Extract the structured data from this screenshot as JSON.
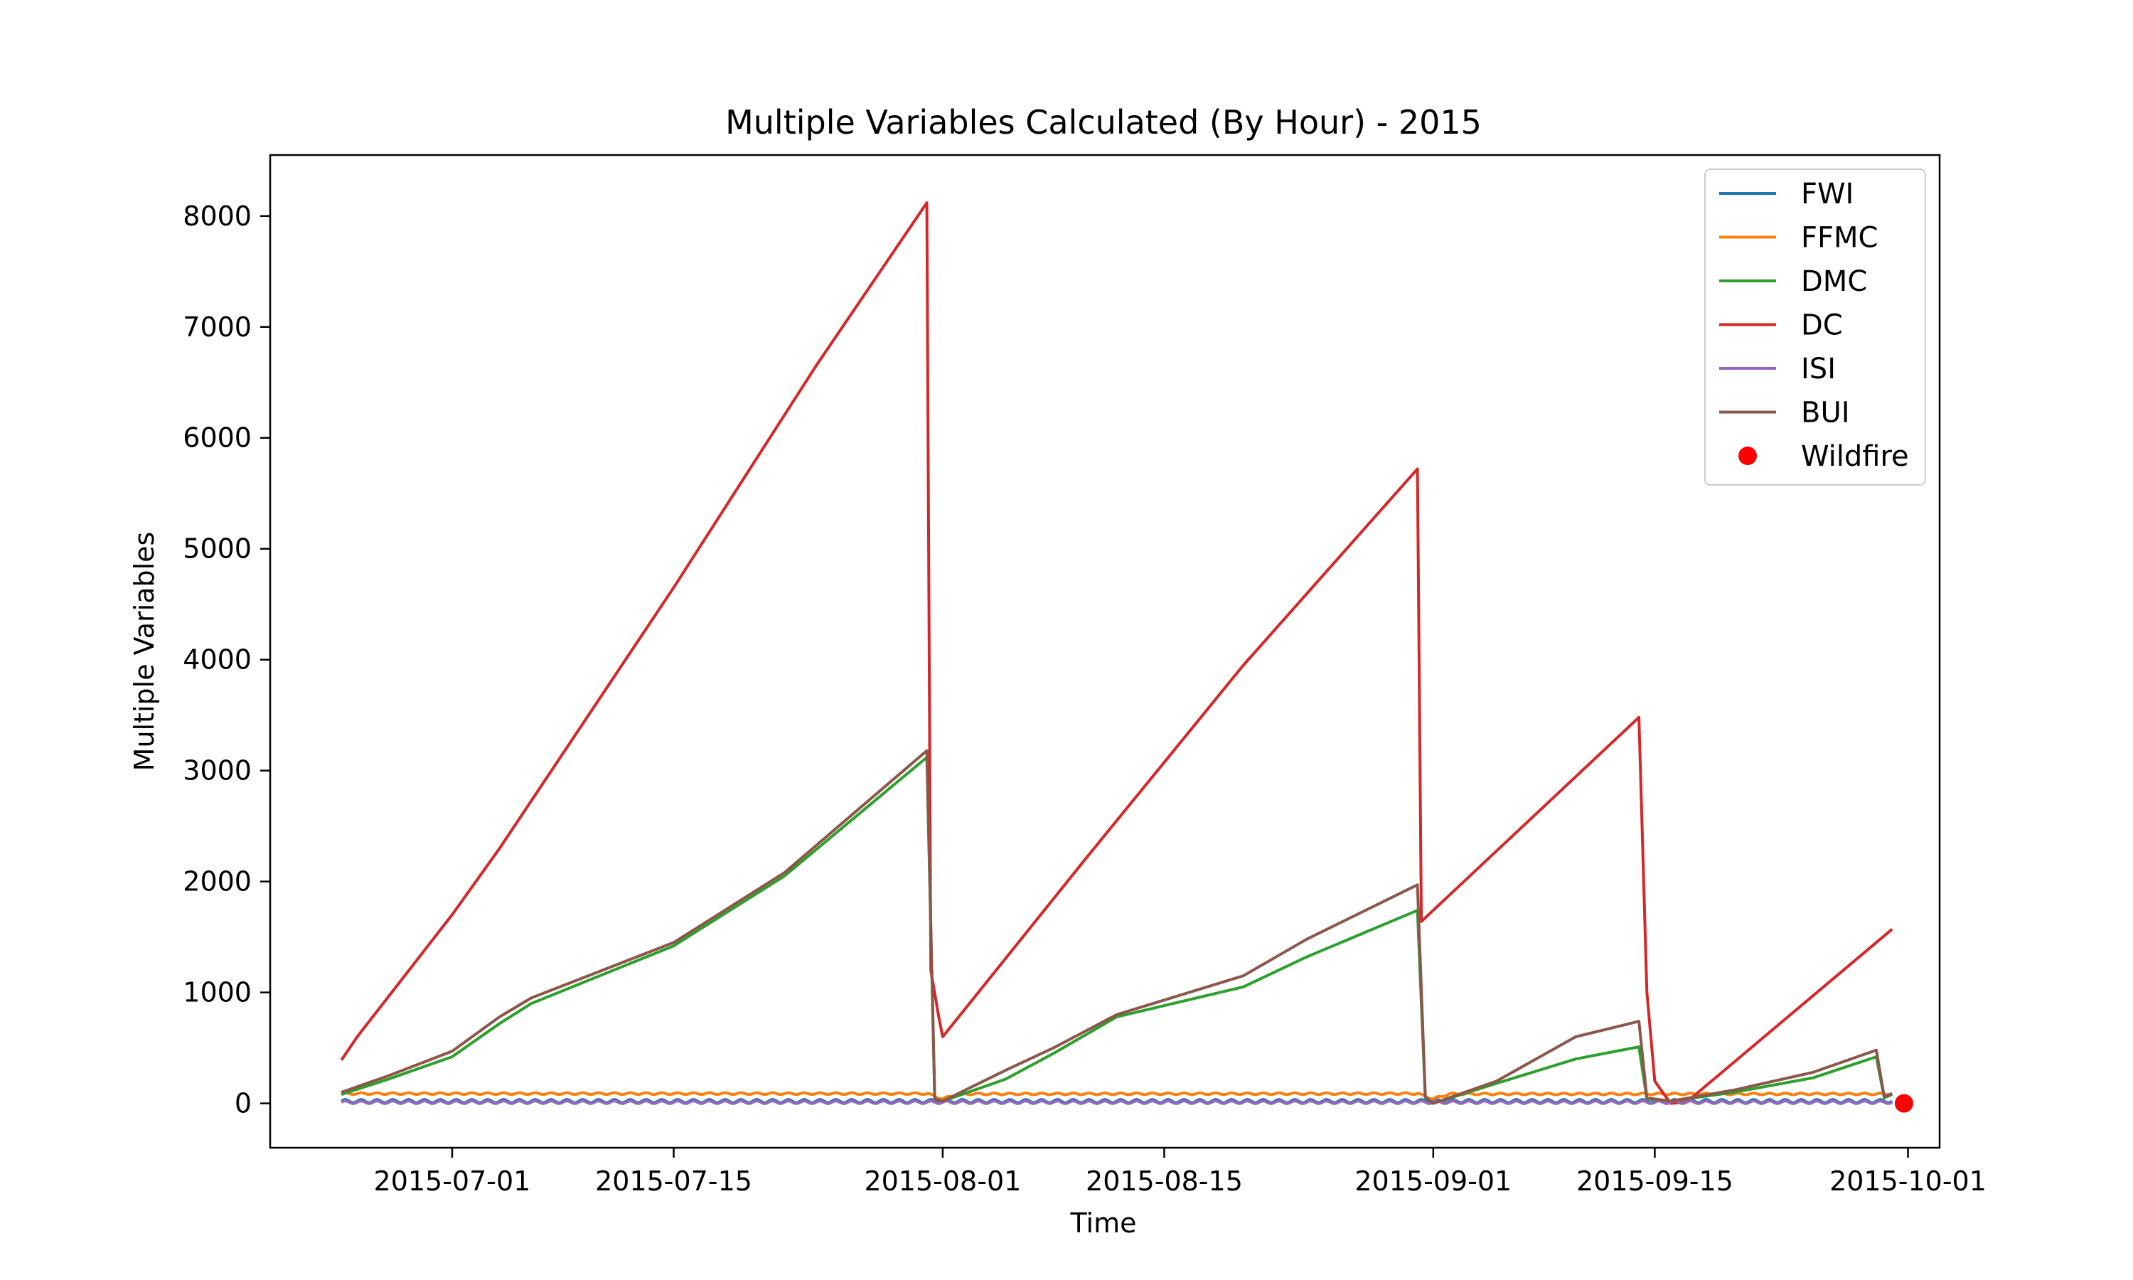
{
  "chart_data": {
    "type": "line",
    "title": "Multiple Variables Calculated (By Hour) - 2015",
    "xlabel": "Time",
    "ylabel": "Multiple Variables",
    "xlim": [
      "2015-06-19T12:00",
      "2015-10-03T00:00"
    ],
    "ylim": [
      -400,
      8550
    ],
    "x_ticks": [
      "2015-07-01",
      "2015-07-15",
      "2015-08-01",
      "2015-08-15",
      "2015-09-01",
      "2015-09-15",
      "2015-10-01"
    ],
    "y_ticks": [
      0,
      1000,
      2000,
      3000,
      4000,
      5000,
      6000,
      7000,
      8000
    ],
    "grid": false,
    "legend_position": "top-right",
    "series": [
      {
        "name": "FWI",
        "color": "#1f77b4",
        "style": "oscillating",
        "points": [
          [
            "2015-06-24",
            20
          ],
          [
            "2015-09-30",
            20
          ]
        ],
        "amplitude": 15
      },
      {
        "name": "FFMC",
        "color": "#ff7f0e",
        "style": "oscillating",
        "points": [
          [
            "2015-06-24",
            88
          ],
          [
            "2015-07-31",
            88
          ],
          [
            "2015-08-01",
            40
          ],
          [
            "2015-08-02",
            85
          ],
          [
            "2015-08-31",
            88
          ],
          [
            "2015-09-01",
            40
          ],
          [
            "2015-09-02",
            85
          ],
          [
            "2015-09-30",
            85
          ]
        ],
        "amplitude": 8
      },
      {
        "name": "DMC",
        "color": "#2ca02c",
        "style": "line",
        "points": [
          [
            "2015-06-24",
            80
          ],
          [
            "2015-06-27",
            220
          ],
          [
            "2015-07-01",
            420
          ],
          [
            "2015-07-04",
            720
          ],
          [
            "2015-07-06",
            900
          ],
          [
            "2015-07-15",
            1420
          ],
          [
            "2015-07-22",
            2050
          ],
          [
            "2015-07-31",
            3120
          ],
          [
            "2015-07-31T12:00",
            40
          ],
          [
            "2015-08-01",
            20
          ],
          [
            "2015-08-05",
            220
          ],
          [
            "2015-08-08",
            450
          ],
          [
            "2015-08-12",
            780
          ],
          [
            "2015-08-20",
            1050
          ],
          [
            "2015-08-24",
            1320
          ],
          [
            "2015-08-31",
            1740
          ],
          [
            "2015-08-31T12:00",
            50
          ],
          [
            "2015-09-01",
            0
          ],
          [
            "2015-09-05",
            180
          ],
          [
            "2015-09-10",
            400
          ],
          [
            "2015-09-14",
            510
          ],
          [
            "2015-09-14T12:00",
            40
          ],
          [
            "2015-09-16",
            20
          ],
          [
            "2015-09-20",
            100
          ],
          [
            "2015-09-25",
            230
          ],
          [
            "2015-09-29",
            420
          ],
          [
            "2015-09-29T12:00",
            50
          ],
          [
            "2015-09-30",
            80
          ]
        ]
      },
      {
        "name": "DC",
        "color": "#d62728",
        "style": "line",
        "points": [
          [
            "2015-06-24",
            390
          ],
          [
            "2015-06-25",
            600
          ],
          [
            "2015-07-01",
            1700
          ],
          [
            "2015-07-04",
            2300
          ],
          [
            "2015-07-15",
            4650
          ],
          [
            "2015-07-24",
            6650
          ],
          [
            "2015-07-31",
            8120
          ],
          [
            "2015-07-31T06:00",
            1200
          ],
          [
            "2015-07-31T18:00",
            780
          ],
          [
            "2015-08-01",
            600
          ],
          [
            "2015-08-10",
            2200
          ],
          [
            "2015-08-20",
            3950
          ],
          [
            "2015-08-31",
            5720
          ],
          [
            "2015-08-31T06:00",
            1640
          ],
          [
            "2015-09-14",
            3480
          ],
          [
            "2015-09-14T12:00",
            1000
          ],
          [
            "2015-09-15",
            200
          ],
          [
            "2015-09-16",
            0
          ],
          [
            "2015-09-17",
            10
          ],
          [
            "2015-09-30",
            1570
          ]
        ]
      },
      {
        "name": "ISI",
        "color": "#9467bd",
        "style": "oscillating",
        "points": [
          [
            "2015-06-24",
            10
          ],
          [
            "2015-09-30",
            10
          ]
        ],
        "amplitude": 12
      },
      {
        "name": "BUI",
        "color": "#8c564b",
        "style": "line",
        "points": [
          [
            "2015-06-24",
            100
          ],
          [
            "2015-06-27",
            250
          ],
          [
            "2015-07-01",
            470
          ],
          [
            "2015-07-04",
            780
          ],
          [
            "2015-07-06",
            950
          ],
          [
            "2015-07-15",
            1450
          ],
          [
            "2015-07-22",
            2080
          ],
          [
            "2015-07-31",
            3180
          ],
          [
            "2015-07-31T12:00",
            40
          ],
          [
            "2015-08-01",
            20
          ],
          [
            "2015-08-05",
            300
          ],
          [
            "2015-08-08",
            500
          ],
          [
            "2015-08-12",
            800
          ],
          [
            "2015-08-20",
            1150
          ],
          [
            "2015-08-24",
            1480
          ],
          [
            "2015-08-31",
            1970
          ],
          [
            "2015-08-31T12:00",
            60
          ],
          [
            "2015-09-01",
            0
          ],
          [
            "2015-09-05",
            200
          ],
          [
            "2015-09-10",
            600
          ],
          [
            "2015-09-14",
            740
          ],
          [
            "2015-09-14T12:00",
            50
          ],
          [
            "2015-09-16",
            20
          ],
          [
            "2015-09-20",
            120
          ],
          [
            "2015-09-25",
            280
          ],
          [
            "2015-09-29",
            480
          ],
          [
            "2015-09-29T12:00",
            60
          ],
          [
            "2015-09-30",
            90
          ]
        ]
      }
    ],
    "scatter": [
      {
        "name": "Wildfire",
        "color": "#ff0000",
        "points": [
          [
            "2015-09-30T18:00",
            0
          ]
        ]
      }
    ]
  }
}
